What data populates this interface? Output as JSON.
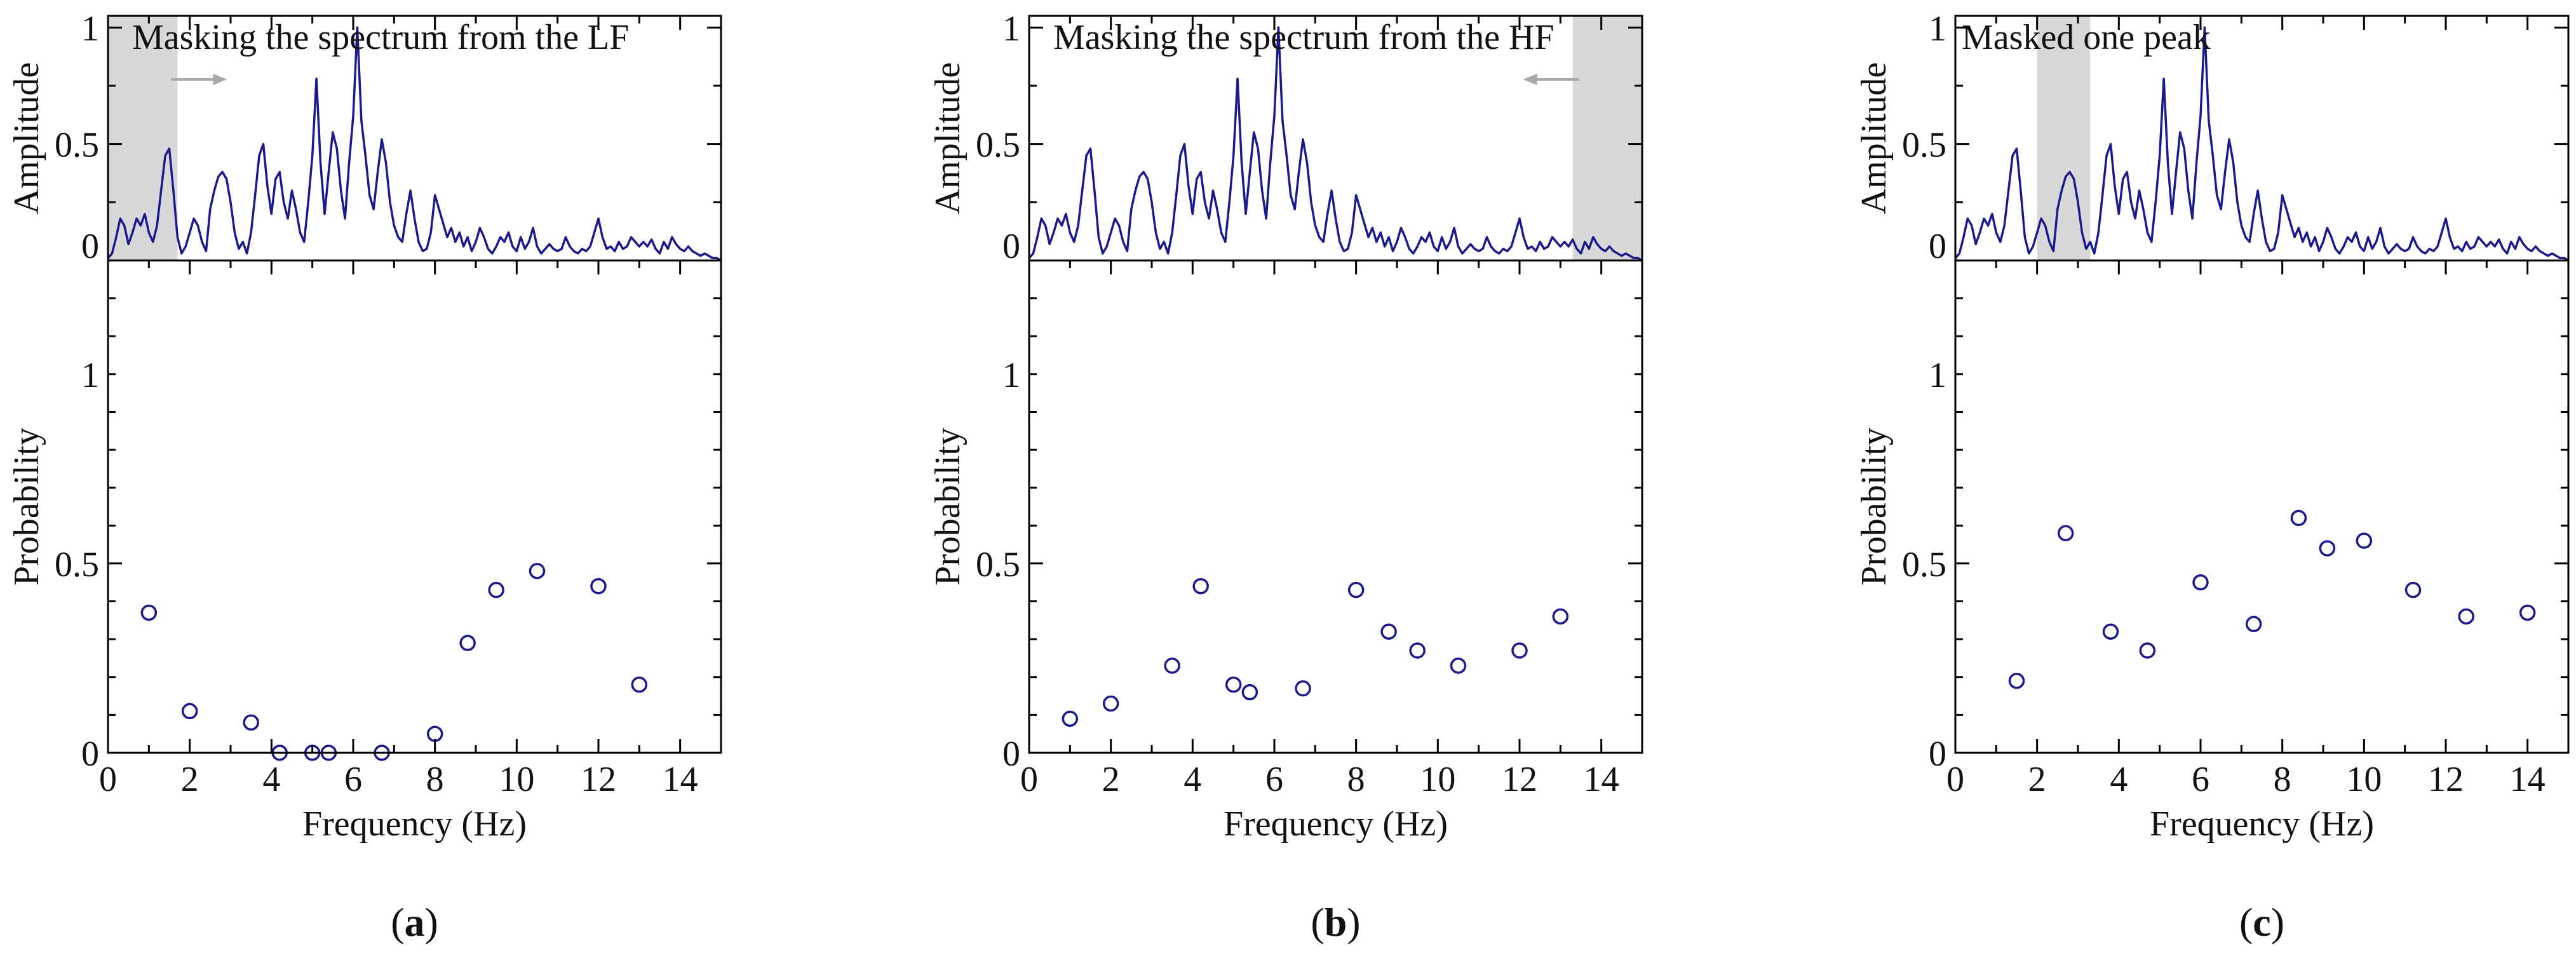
{
  "colors": {
    "line": "#1a1a8c",
    "marker": "#1a1a8c",
    "mask": "#d8d8d8",
    "arrow": "#a8a8a8",
    "axis": "#000000"
  },
  "chart_data": [
    {
      "type": "line+scatter",
      "label": "(a)",
      "label_letter": "a",
      "annotation": "Masking the spectrum from the LF",
      "mask_range": [
        0,
        1.7
      ],
      "arrow_direction": "right",
      "spectrum": {
        "ylabel": "Amplitude",
        "xlim": [
          0,
          15
        ],
        "ylim": [
          0,
          1.05
        ],
        "yticks": [
          0,
          0.5,
          1
        ],
        "ytick_labels": [
          "0",
          "0.5",
          "1"
        ],
        "x": [
          0,
          0.1,
          0.2,
          0.3,
          0.4,
          0.5,
          0.6,
          0.7,
          0.8,
          0.9,
          1.0,
          1.1,
          1.2,
          1.3,
          1.4,
          1.5,
          1.6,
          1.7,
          1.8,
          1.9,
          2.0,
          2.1,
          2.2,
          2.3,
          2.4,
          2.5,
          2.6,
          2.7,
          2.8,
          2.9,
          3.0,
          3.1,
          3.2,
          3.3,
          3.4,
          3.5,
          3.6,
          3.7,
          3.8,
          3.9,
          4.0,
          4.1,
          4.2,
          4.3,
          4.4,
          4.5,
          4.6,
          4.7,
          4.8,
          4.9,
          5.0,
          5.1,
          5.2,
          5.3,
          5.4,
          5.5,
          5.6,
          5.7,
          5.8,
          5.9,
          6.0,
          6.1,
          6.2,
          6.3,
          6.4,
          6.5,
          6.6,
          6.7,
          6.8,
          6.9,
          7.0,
          7.1,
          7.2,
          7.3,
          7.4,
          7.5,
          7.6,
          7.7,
          7.8,
          7.9,
          8.0,
          8.1,
          8.2,
          8.3,
          8.4,
          8.5,
          8.6,
          8.7,
          8.8,
          8.9,
          9.0,
          9.1,
          9.2,
          9.3,
          9.4,
          9.5,
          9.6,
          9.7,
          9.8,
          9.9,
          10.0,
          10.1,
          10.2,
          10.3,
          10.4,
          10.5,
          10.6,
          10.7,
          10.8,
          10.9,
          11.0,
          11.1,
          11.2,
          11.3,
          11.4,
          11.5,
          11.6,
          11.7,
          11.8,
          11.9,
          12.0,
          12.1,
          12.2,
          12.3,
          12.4,
          12.5,
          12.6,
          12.7,
          12.8,
          12.9,
          13.0,
          13.1,
          13.2,
          13.3,
          13.4,
          13.5,
          13.6,
          13.7,
          13.8,
          13.9,
          14.0,
          14.1,
          14.2,
          14.3,
          14.4,
          14.5,
          14.6,
          14.7,
          14.8,
          14.9,
          15.0
        ],
        "y": [
          0.01,
          0.03,
          0.1,
          0.18,
          0.15,
          0.07,
          0.12,
          0.18,
          0.15,
          0.2,
          0.12,
          0.08,
          0.15,
          0.3,
          0.45,
          0.48,
          0.3,
          0.1,
          0.03,
          0.06,
          0.12,
          0.18,
          0.15,
          0.08,
          0.04,
          0.22,
          0.3,
          0.36,
          0.38,
          0.35,
          0.25,
          0.12,
          0.05,
          0.08,
          0.03,
          0.12,
          0.28,
          0.45,
          0.5,
          0.32,
          0.2,
          0.35,
          0.38,
          0.25,
          0.18,
          0.3,
          0.22,
          0.12,
          0.08,
          0.25,
          0.45,
          0.78,
          0.42,
          0.2,
          0.38,
          0.55,
          0.48,
          0.3,
          0.18,
          0.42,
          0.62,
          1.0,
          0.6,
          0.45,
          0.28,
          0.22,
          0.38,
          0.52,
          0.42,
          0.25,
          0.15,
          0.1,
          0.08,
          0.2,
          0.3,
          0.18,
          0.08,
          0.04,
          0.05,
          0.12,
          0.28,
          0.22,
          0.16,
          0.1,
          0.14,
          0.08,
          0.12,
          0.06,
          0.1,
          0.04,
          0.08,
          0.14,
          0.1,
          0.05,
          0.03,
          0.06,
          0.1,
          0.08,
          0.12,
          0.06,
          0.04,
          0.1,
          0.05,
          0.08,
          0.14,
          0.06,
          0.03,
          0.05,
          0.07,
          0.05,
          0.04,
          0.05,
          0.1,
          0.06,
          0.04,
          0.03,
          0.05,
          0.04,
          0.06,
          0.12,
          0.18,
          0.1,
          0.05,
          0.06,
          0.04,
          0.08,
          0.05,
          0.06,
          0.1,
          0.08,
          0.06,
          0.08,
          0.06,
          0.09,
          0.05,
          0.03,
          0.08,
          0.05,
          0.1,
          0.07,
          0.05,
          0.04,
          0.06,
          0.04,
          0.03,
          0.02,
          0.03,
          0.02,
          0.01,
          0.01,
          0.0
        ]
      },
      "probability": {
        "ylabel": "Probability",
        "xlabel": "Frequency (Hz)",
        "xlim": [
          0,
          15
        ],
        "ylim": [
          0,
          1.3
        ],
        "xticks": [
          0,
          2,
          4,
          6,
          8,
          10,
          12,
          14
        ],
        "xtick_labels": [
          "0",
          "2",
          "4",
          "6",
          "8",
          "10",
          "12",
          "14"
        ],
        "yticks": [
          0,
          0.5,
          1
        ],
        "ytick_labels": [
          "0",
          "0.5",
          "1"
        ],
        "x": [
          1.0,
          2.0,
          3.5,
          4.2,
          5.0,
          5.4,
          6.7,
          8.0,
          8.8,
          9.5,
          10.5,
          12.0,
          13.0
        ],
        "y": [
          0.37,
          0.11,
          0.08,
          0.0,
          0.0,
          0.0,
          0.0,
          0.05,
          0.29,
          0.43,
          0.48,
          0.44,
          0.18
        ]
      }
    },
    {
      "type": "line+scatter",
      "label": "(b)",
      "label_letter": "b",
      "annotation": "Masking the spectrum from the HF",
      "mask_range": [
        13.3,
        15
      ],
      "arrow_direction": "left",
      "spectrum": {
        "ylabel": "Amplitude",
        "xlim": [
          0,
          15
        ],
        "ylim": [
          0,
          1.05
        ],
        "yticks": [
          0,
          0.5,
          1
        ],
        "ytick_labels": [
          "0",
          "0.5",
          "1"
        ],
        "x": [
          0,
          0.1,
          0.2,
          0.3,
          0.4,
          0.5,
          0.6,
          0.7,
          0.8,
          0.9,
          1.0,
          1.1,
          1.2,
          1.3,
          1.4,
          1.5,
          1.6,
          1.7,
          1.8,
          1.9,
          2.0,
          2.1,
          2.2,
          2.3,
          2.4,
          2.5,
          2.6,
          2.7,
          2.8,
          2.9,
          3.0,
          3.1,
          3.2,
          3.3,
          3.4,
          3.5,
          3.6,
          3.7,
          3.8,
          3.9,
          4.0,
          4.1,
          4.2,
          4.3,
          4.4,
          4.5,
          4.6,
          4.7,
          4.8,
          4.9,
          5.0,
          5.1,
          5.2,
          5.3,
          5.4,
          5.5,
          5.6,
          5.7,
          5.8,
          5.9,
          6.0,
          6.1,
          6.2,
          6.3,
          6.4,
          6.5,
          6.6,
          6.7,
          6.8,
          6.9,
          7.0,
          7.1,
          7.2,
          7.3,
          7.4,
          7.5,
          7.6,
          7.7,
          7.8,
          7.9,
          8.0,
          8.1,
          8.2,
          8.3,
          8.4,
          8.5,
          8.6,
          8.7,
          8.8,
          8.9,
          9.0,
          9.1,
          9.2,
          9.3,
          9.4,
          9.5,
          9.6,
          9.7,
          9.8,
          9.9,
          10.0,
          10.1,
          10.2,
          10.3,
          10.4,
          10.5,
          10.6,
          10.7,
          10.8,
          10.9,
          11.0,
          11.1,
          11.2,
          11.3,
          11.4,
          11.5,
          11.6,
          11.7,
          11.8,
          11.9,
          12.0,
          12.1,
          12.2,
          12.3,
          12.4,
          12.5,
          12.6,
          12.7,
          12.8,
          12.9,
          13.0,
          13.1,
          13.2,
          13.3,
          13.4,
          13.5,
          13.6,
          13.7,
          13.8,
          13.9,
          14.0,
          14.1,
          14.2,
          14.3,
          14.4,
          14.5,
          14.6,
          14.7,
          14.8,
          14.9,
          15.0
        ],
        "y": [
          0.01,
          0.03,
          0.1,
          0.18,
          0.15,
          0.07,
          0.12,
          0.18,
          0.15,
          0.2,
          0.12,
          0.08,
          0.15,
          0.3,
          0.45,
          0.48,
          0.3,
          0.1,
          0.03,
          0.06,
          0.12,
          0.18,
          0.15,
          0.08,
          0.04,
          0.22,
          0.3,
          0.36,
          0.38,
          0.35,
          0.25,
          0.12,
          0.05,
          0.08,
          0.03,
          0.12,
          0.28,
          0.45,
          0.5,
          0.32,
          0.2,
          0.35,
          0.38,
          0.25,
          0.18,
          0.3,
          0.22,
          0.12,
          0.08,
          0.25,
          0.45,
          0.78,
          0.42,
          0.2,
          0.38,
          0.55,
          0.48,
          0.3,
          0.18,
          0.42,
          0.62,
          1.0,
          0.6,
          0.45,
          0.28,
          0.22,
          0.38,
          0.52,
          0.42,
          0.25,
          0.15,
          0.1,
          0.08,
          0.2,
          0.3,
          0.18,
          0.08,
          0.04,
          0.05,
          0.12,
          0.28,
          0.22,
          0.16,
          0.1,
          0.14,
          0.08,
          0.12,
          0.06,
          0.1,
          0.04,
          0.08,
          0.14,
          0.1,
          0.05,
          0.03,
          0.06,
          0.1,
          0.08,
          0.12,
          0.06,
          0.04,
          0.1,
          0.05,
          0.08,
          0.14,
          0.06,
          0.03,
          0.05,
          0.07,
          0.05,
          0.04,
          0.05,
          0.1,
          0.06,
          0.04,
          0.03,
          0.05,
          0.04,
          0.06,
          0.12,
          0.18,
          0.1,
          0.05,
          0.06,
          0.04,
          0.08,
          0.05,
          0.06,
          0.1,
          0.08,
          0.06,
          0.08,
          0.06,
          0.09,
          0.05,
          0.03,
          0.08,
          0.05,
          0.1,
          0.07,
          0.05,
          0.04,
          0.06,
          0.04,
          0.03,
          0.02,
          0.03,
          0.02,
          0.01,
          0.01,
          0.0
        ]
      },
      "probability": {
        "ylabel": "Probability",
        "xlabel": "Frequency (Hz)",
        "xlim": [
          0,
          15
        ],
        "ylim": [
          0,
          1.3
        ],
        "xticks": [
          0,
          2,
          4,
          6,
          8,
          10,
          12,
          14
        ],
        "xtick_labels": [
          "0",
          "2",
          "4",
          "6",
          "8",
          "10",
          "12",
          "14"
        ],
        "yticks": [
          0,
          0.5,
          1
        ],
        "ytick_labels": [
          "0",
          "0.5",
          "1"
        ],
        "x": [
          1.0,
          2.0,
          3.5,
          4.2,
          5.0,
          5.4,
          6.7,
          8.0,
          8.8,
          9.5,
          10.5,
          12.0,
          13.0
        ],
        "y": [
          0.09,
          0.13,
          0.23,
          0.44,
          0.18,
          0.16,
          0.17,
          0.43,
          0.32,
          0.27,
          0.23,
          0.27,
          0.36
        ]
      }
    },
    {
      "type": "line+scatter",
      "label": "(c)",
      "label_letter": "c",
      "annotation": "Masked one peak",
      "mask_range": [
        2.0,
        3.3
      ],
      "arrow_direction": "none",
      "spectrum": {
        "ylabel": "Amplitude",
        "xlim": [
          0,
          15
        ],
        "ylim": [
          0,
          1.05
        ],
        "yticks": [
          0,
          0.5,
          1
        ],
        "ytick_labels": [
          "0",
          "0.5",
          "1"
        ],
        "x": [
          0,
          0.1,
          0.2,
          0.3,
          0.4,
          0.5,
          0.6,
          0.7,
          0.8,
          0.9,
          1.0,
          1.1,
          1.2,
          1.3,
          1.4,
          1.5,
          1.6,
          1.7,
          1.8,
          1.9,
          2.0,
          2.1,
          2.2,
          2.3,
          2.4,
          2.5,
          2.6,
          2.7,
          2.8,
          2.9,
          3.0,
          3.1,
          3.2,
          3.3,
          3.4,
          3.5,
          3.6,
          3.7,
          3.8,
          3.9,
          4.0,
          4.1,
          4.2,
          4.3,
          4.4,
          4.5,
          4.6,
          4.7,
          4.8,
          4.9,
          5.0,
          5.1,
          5.2,
          5.3,
          5.4,
          5.5,
          5.6,
          5.7,
          5.8,
          5.9,
          6.0,
          6.1,
          6.2,
          6.3,
          6.4,
          6.5,
          6.6,
          6.7,
          6.8,
          6.9,
          7.0,
          7.1,
          7.2,
          7.3,
          7.4,
          7.5,
          7.6,
          7.7,
          7.8,
          7.9,
          8.0,
          8.1,
          8.2,
          8.3,
          8.4,
          8.5,
          8.6,
          8.7,
          8.8,
          8.9,
          9.0,
          9.1,
          9.2,
          9.3,
          9.4,
          9.5,
          9.6,
          9.7,
          9.8,
          9.9,
          10.0,
          10.1,
          10.2,
          10.3,
          10.4,
          10.5,
          10.6,
          10.7,
          10.8,
          10.9,
          11.0,
          11.1,
          11.2,
          11.3,
          11.4,
          11.5,
          11.6,
          11.7,
          11.8,
          11.9,
          12.0,
          12.1,
          12.2,
          12.3,
          12.4,
          12.5,
          12.6,
          12.7,
          12.8,
          12.9,
          13.0,
          13.1,
          13.2,
          13.3,
          13.4,
          13.5,
          13.6,
          13.7,
          13.8,
          13.9,
          14.0,
          14.1,
          14.2,
          14.3,
          14.4,
          14.5,
          14.6,
          14.7,
          14.8,
          14.9,
          15.0
        ],
        "y": [
          0.01,
          0.03,
          0.1,
          0.18,
          0.15,
          0.07,
          0.12,
          0.18,
          0.15,
          0.2,
          0.12,
          0.08,
          0.15,
          0.3,
          0.45,
          0.48,
          0.3,
          0.1,
          0.03,
          0.06,
          0.12,
          0.18,
          0.15,
          0.08,
          0.04,
          0.22,
          0.3,
          0.36,
          0.38,
          0.35,
          0.25,
          0.12,
          0.05,
          0.08,
          0.03,
          0.12,
          0.28,
          0.45,
          0.5,
          0.32,
          0.2,
          0.35,
          0.38,
          0.25,
          0.18,
          0.3,
          0.22,
          0.12,
          0.08,
          0.25,
          0.45,
          0.78,
          0.42,
          0.2,
          0.38,
          0.55,
          0.48,
          0.3,
          0.18,
          0.42,
          0.62,
          1.0,
          0.6,
          0.45,
          0.28,
          0.22,
          0.38,
          0.52,
          0.42,
          0.25,
          0.15,
          0.1,
          0.08,
          0.2,
          0.3,
          0.18,
          0.08,
          0.04,
          0.05,
          0.12,
          0.28,
          0.22,
          0.16,
          0.1,
          0.14,
          0.08,
          0.12,
          0.06,
          0.1,
          0.04,
          0.08,
          0.14,
          0.1,
          0.05,
          0.03,
          0.06,
          0.1,
          0.08,
          0.12,
          0.06,
          0.04,
          0.1,
          0.05,
          0.08,
          0.14,
          0.06,
          0.03,
          0.05,
          0.07,
          0.05,
          0.04,
          0.05,
          0.1,
          0.06,
          0.04,
          0.03,
          0.05,
          0.04,
          0.06,
          0.12,
          0.18,
          0.1,
          0.05,
          0.06,
          0.04,
          0.08,
          0.05,
          0.06,
          0.1,
          0.08,
          0.06,
          0.08,
          0.06,
          0.09,
          0.05,
          0.03,
          0.08,
          0.05,
          0.1,
          0.07,
          0.05,
          0.04,
          0.06,
          0.04,
          0.03,
          0.02,
          0.03,
          0.02,
          0.01,
          0.01,
          0.0
        ]
      },
      "probability": {
        "ylabel": "Probability",
        "xlabel": "Frequency (Hz)",
        "xlim": [
          0,
          15
        ],
        "ylim": [
          0,
          1.3
        ],
        "xticks": [
          0,
          2,
          4,
          6,
          8,
          10,
          12,
          14
        ],
        "xtick_labels": [
          "0",
          "2",
          "4",
          "6",
          "8",
          "10",
          "12",
          "14"
        ],
        "yticks": [
          0,
          0.5,
          1
        ],
        "ytick_labels": [
          "0",
          "0.5",
          "1"
        ],
        "x": [
          1.5,
          2.7,
          3.8,
          4.7,
          6.0,
          7.3,
          8.4,
          9.1,
          10.0,
          11.2,
          12.5,
          14.0
        ],
        "y": [
          0.19,
          0.58,
          0.32,
          0.27,
          0.45,
          0.34,
          0.62,
          0.54,
          0.56,
          0.43,
          0.36,
          0.37
        ]
      }
    }
  ]
}
